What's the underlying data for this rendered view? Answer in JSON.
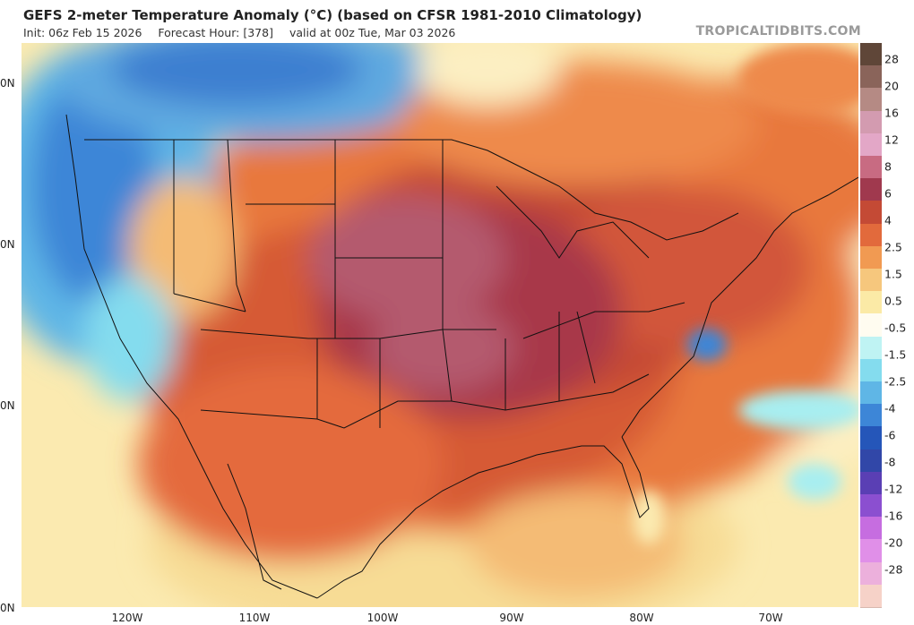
{
  "header": {
    "title": "GEFS 2-meter Temperature Anomaly (°C) (based on CFSR 1981-2010 Climatology)",
    "init": "Init: 06z Feb 15 2026",
    "forecast_hour": "Forecast Hour: [378]",
    "valid": "valid at 00z Tue, Mar 03 2026",
    "brand": "TROPICALTIDBITS.COM"
  },
  "lat_labels": [
    "0N",
    "0N",
    "0N",
    "0N"
  ],
  "lon_labels": [
    "120W",
    "110W",
    "100W",
    "90W",
    "80W",
    "70W"
  ],
  "colorbar": {
    "labels": [
      "28",
      "20",
      "16",
      "12",
      "8",
      "6",
      "4",
      "2.5",
      "1.5",
      "0.5",
      "-0.5",
      "-1.5",
      "-2.5",
      "-4",
      "-6",
      "-8",
      "-12",
      "-16",
      "-20",
      "-28"
    ],
    "colors": [
      "#5f4638",
      "#8a645a",
      "#b58a84",
      "#d39bb0",
      "#e3a7c7",
      "#c86b82",
      "#a0394e",
      "#c44a35",
      "#e26a3c",
      "#f19a52",
      "#f6c77d",
      "#fbeaa6",
      "#fffcf0",
      "#bff3f3",
      "#84dcee",
      "#5fb6e6",
      "#3d86d7",
      "#2556b9",
      "#3147a8",
      "#5a3fb4",
      "#8b4fd0",
      "#c66de0",
      "#e08fe8",
      "#ecb0dc",
      "#f6d2c8"
    ]
  }
}
